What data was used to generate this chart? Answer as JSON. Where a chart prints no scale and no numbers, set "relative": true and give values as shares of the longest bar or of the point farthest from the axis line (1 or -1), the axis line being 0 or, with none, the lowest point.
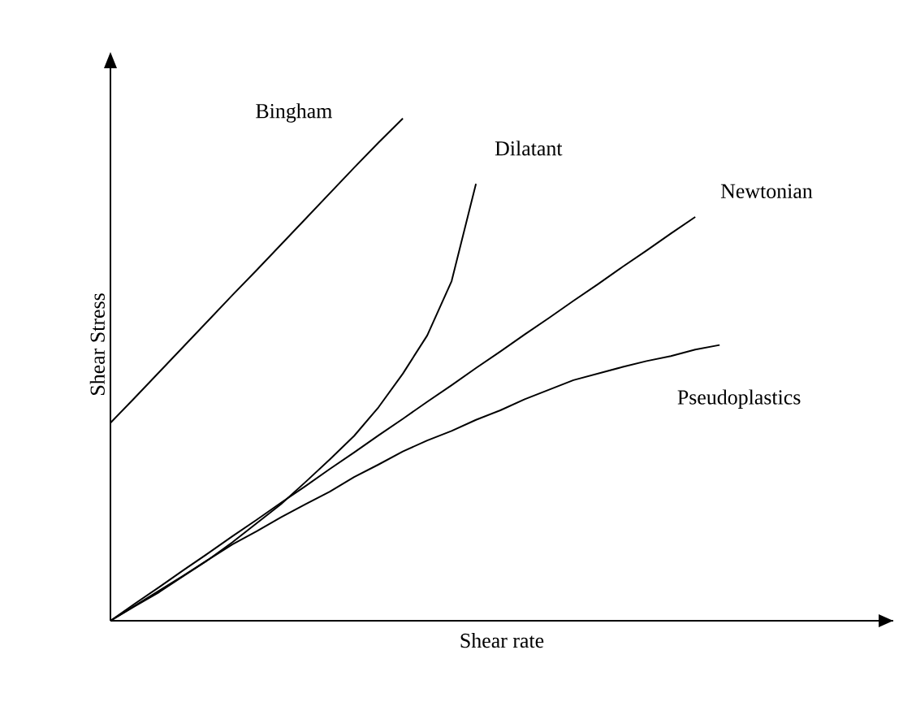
{
  "chart_data": {
    "type": "line",
    "relative": true,
    "xlabel": "Shear rate",
    "ylabel": "Shear  Stress",
    "marker": "none",
    "line_style": "solid",
    "categories": [
      null,
      null,
      null,
      null,
      null,
      null,
      null,
      null,
      null,
      null,
      null,
      null,
      null,
      null,
      null,
      null,
      null,
      null,
      null,
      null,
      null,
      null,
      null,
      null,
      null,
      null
    ],
    "series": [
      {
        "name": "Bingham",
        "color": "#000000",
        "values": [
          0.394,
          0.444,
          0.495,
          0.546,
          0.597,
          0.648,
          0.698,
          0.749,
          0.8,
          0.851,
          0.902,
          0.952,
          1,
          null,
          null,
          null,
          null,
          null,
          null,
          null,
          null,
          null,
          null,
          null,
          null,
          null
        ]
      },
      {
        "name": "Dilatant",
        "color": "#000000",
        "values": [
          0,
          0.029,
          0.057,
          0.089,
          0.121,
          0.156,
          0.194,
          0.232,
          0.276,
          0.321,
          0.368,
          0.425,
          0.492,
          0.568,
          0.676,
          0.87,
          null,
          null,
          null,
          null,
          null,
          null,
          null,
          null,
          null,
          null
        ]
      },
      {
        "name": "Newtonian",
        "color": "#000000",
        "values": [
          0,
          0.034,
          0.067,
          0.101,
          0.134,
          0.168,
          0.201,
          0.235,
          0.268,
          0.302,
          0.335,
          0.369,
          0.402,
          0.436,
          0.469,
          0.503,
          0.536,
          0.57,
          0.603,
          0.637,
          0.67,
          0.704,
          0.737,
          0.771,
          0.804,
          null
        ]
      },
      {
        "name": "Pseudoplastics",
        "color": "#000000",
        "values": [
          0,
          0.03,
          0.06,
          0.09,
          0.121,
          0.152,
          0.178,
          0.206,
          0.232,
          0.257,
          0.286,
          0.311,
          0.337,
          0.359,
          0.378,
          0.4,
          0.419,
          0.441,
          0.46,
          0.479,
          0.492,
          0.505,
          0.517,
          0.527,
          0.54,
          0.549
        ]
      }
    ]
  }
}
